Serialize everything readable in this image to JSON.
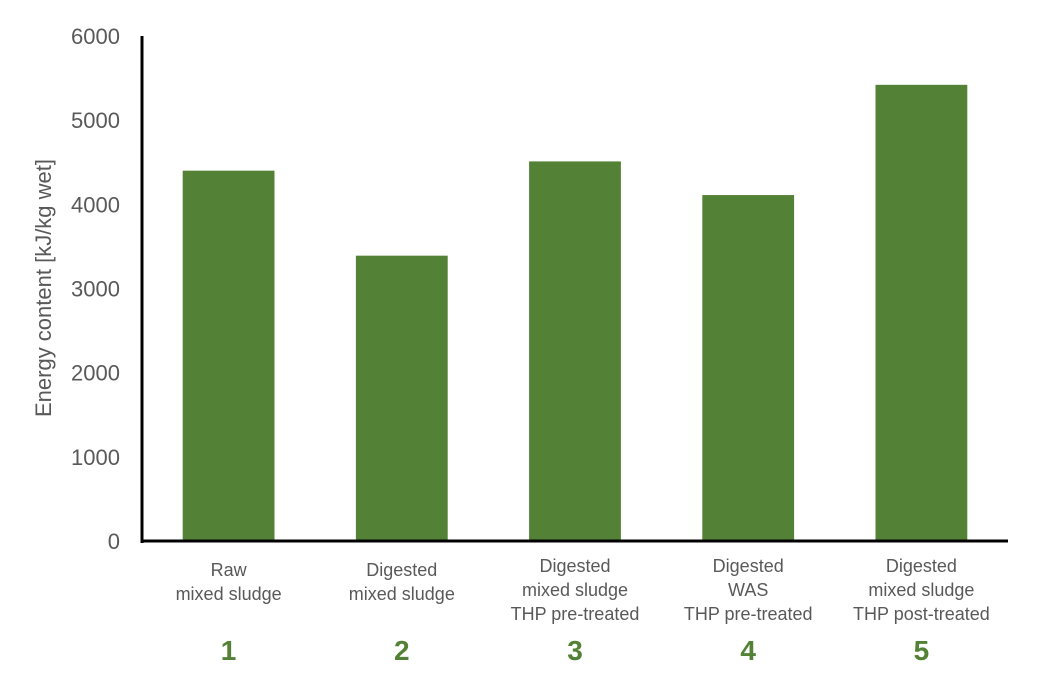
{
  "chart_data": {
    "type": "bar",
    "categories": [
      [
        "Raw",
        "mixed sludge"
      ],
      [
        "Digested",
        "mixed sludge"
      ],
      [
        "Digested",
        "mixed sludge",
        "THP pre-treated"
      ],
      [
        "Digested",
        "WAS",
        "THP pre-treated"
      ],
      [
        "Digested",
        "mixed sludge",
        "THP post-treated"
      ]
    ],
    "category_numbers": [
      "1",
      "2",
      "3",
      "4",
      "5"
    ],
    "values": [
      4400,
      3390,
      4510,
      4110,
      5420
    ],
    "ylabel": "Energy content [kJ/kg wet]",
    "ylim": [
      0,
      6000
    ],
    "yticks": [
      0,
      1000,
      2000,
      3000,
      4000,
      5000,
      6000
    ],
    "grid": false,
    "bar_color": "#538135",
    "number_color": "#538135",
    "text_color": "#595959"
  }
}
